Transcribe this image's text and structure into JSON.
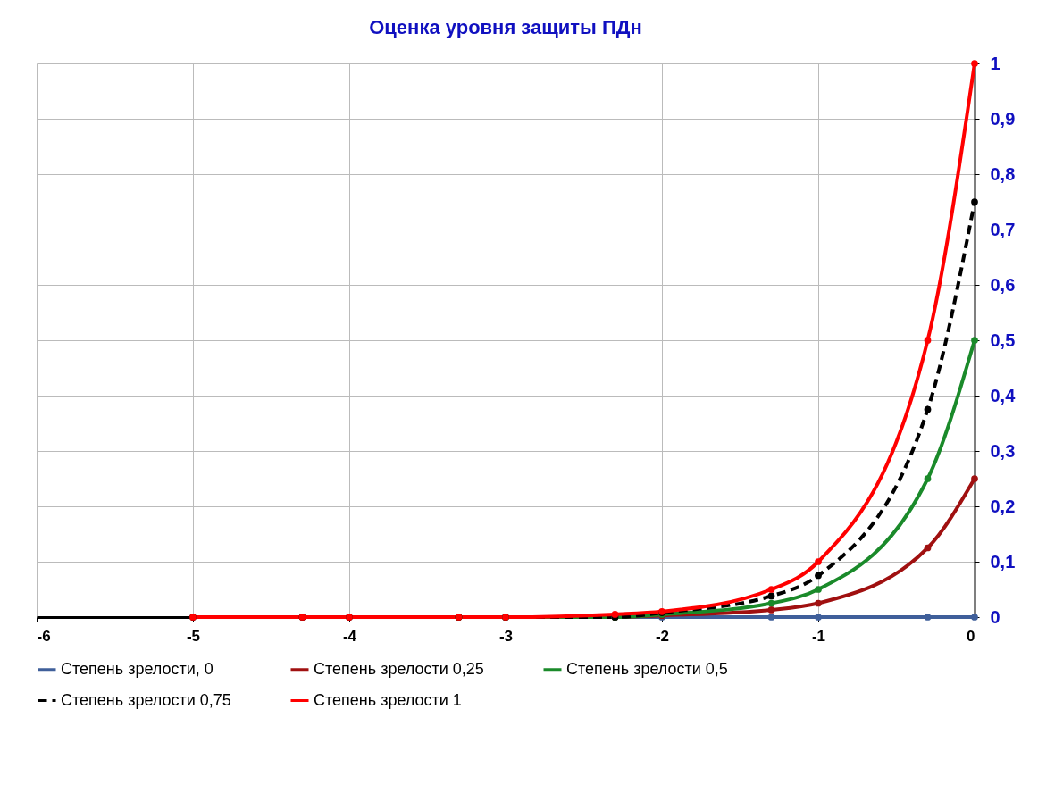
{
  "chart_data": {
    "type": "line",
    "title": "Оценка уровня защиты ПДн",
    "x": [
      -5,
      -4.3,
      -4,
      -3.3,
      -3,
      -2.3,
      -2,
      -1.3,
      -1,
      -0.3,
      0
    ],
    "series": [
      {
        "name": "Степень зрелости, 0",
        "color": "#3f5f9a",
        "values": [
          null,
          null,
          null,
          null,
          0,
          0,
          0,
          0,
          0,
          0,
          0
        ]
      },
      {
        "name": "Степень зрелости 0,25",
        "color": "#a01010",
        "values": [
          0,
          0,
          0,
          0,
          0,
          0,
          0.003,
          0.013,
          0.025,
          0.125,
          0.25
        ]
      },
      {
        "name": "Степень зрелости 0,5",
        "color": "#1a8a2a",
        "values": [
          null,
          null,
          null,
          0,
          0,
          0,
          0.005,
          0.025,
          0.05,
          0.25,
          0.5
        ]
      },
      {
        "name": "Степень зрелости 0,75",
        "color": "#000000",
        "line_style": "dashed",
        "values": [
          0,
          0,
          0,
          0,
          0,
          0,
          0.008,
          0.038,
          0.075,
          0.375,
          0.75
        ]
      },
      {
        "name": "Степень зрелости 1",
        "color": "#ff0000",
        "values": [
          0,
          0,
          0,
          0,
          0,
          0.005,
          0.01,
          0.05,
          0.1,
          0.5,
          1
        ]
      }
    ],
    "xlim": [
      -6,
      0
    ],
    "xticks": [
      -6,
      -5,
      -4,
      -3,
      -2,
      -1,
      0
    ],
    "ylim": [
      0,
      1
    ],
    "yticks": [
      0,
      {
        "value": 0.1,
        "label": "0,1"
      },
      {
        "value": 0.2,
        "label": "0,2"
      },
      {
        "value": 0.3,
        "label": "0,3"
      },
      {
        "value": 0.4,
        "label": "0,4"
      },
      {
        "value": 0.5,
        "label": "0,5"
      },
      {
        "value": 0.6,
        "label": "0,6"
      },
      {
        "value": 0.7,
        "label": "0,7"
      },
      {
        "value": 0.8,
        "label": "0,8"
      },
      {
        "value": 0.9,
        "label": "0,9"
      },
      1
    ],
    "grid": true,
    "legend": "bottom",
    "marker": "circle",
    "line_style": "solid"
  }
}
